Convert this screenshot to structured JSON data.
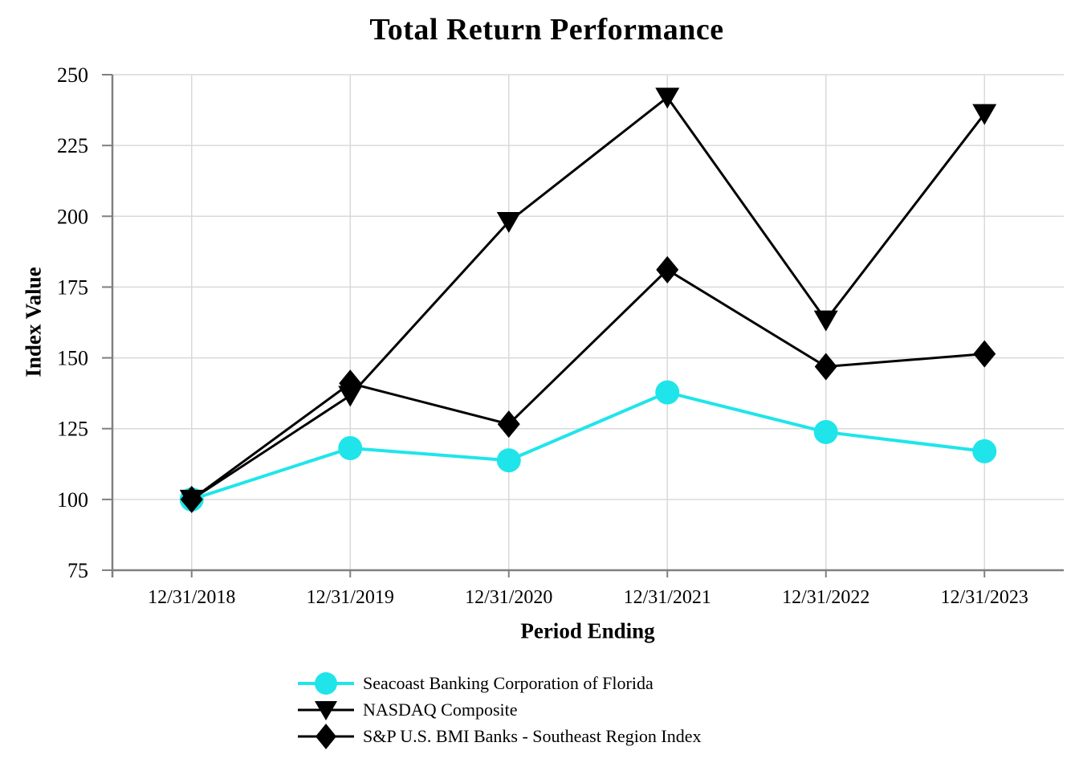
{
  "chart_data": {
    "type": "line",
    "title": "Total Return Performance",
    "xlabel": "Period Ending",
    "ylabel": "Index Value",
    "categories": [
      "12/31/2018",
      "12/31/2019",
      "12/31/2020",
      "12/31/2021",
      "12/31/2022",
      "12/31/2023"
    ],
    "ylim": [
      75,
      250
    ],
    "yticks": [
      75,
      100,
      125,
      150,
      175,
      200,
      225,
      250
    ],
    "grid": true,
    "grid_color": "#D9D9D9",
    "axis_color": "#808080",
    "background": "#FFFFFF",
    "legend_position": "bottom-left",
    "series": [
      {
        "name": "Seacoast Banking Corporation of Florida",
        "color": "#1FE5EA",
        "marker": "circle",
        "values": [
          100.0,
          118.1,
          113.8,
          137.8,
          123.8,
          117.0
        ]
      },
      {
        "name": "NASDAQ Composite",
        "color": "#000000",
        "marker": "triangle-down",
        "values": [
          100.0,
          136.7,
          198.1,
          242.0,
          163.3,
          236.2
        ]
      },
      {
        "name": "S&P U.S. BMI Banks - Southeast Region Index",
        "color": "#000000",
        "marker": "diamond",
        "values": [
          100.0,
          141.0,
          126.6,
          181.1,
          146.9,
          151.4
        ]
      }
    ]
  }
}
